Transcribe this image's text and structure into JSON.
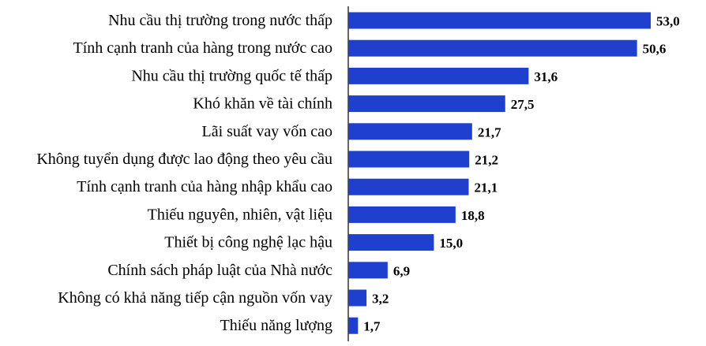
{
  "chart_data": {
    "type": "bar",
    "orientation": "horizontal",
    "title": "",
    "xlabel": "",
    "ylabel": "",
    "categories": [
      "Nhu cầu thị trường trong nước thấp",
      "Tính cạnh tranh của hàng trong nước cao",
      "Nhu cầu thị trường quốc tế thấp",
      "Khó khăn về tài chính",
      "Lãi suất vay vốn cao",
      "Không tuyển dụng được lao động theo yêu cầu",
      "Tính cạnh tranh của hàng nhập khẩu cao",
      "Thiếu nguyên, nhiên, vật liệu",
      "Thiết bị công nghệ lạc hậu",
      "Chính sách pháp luật của Nhà nước",
      "Không có khả năng tiếp cận nguồn vốn vay",
      "Thiếu năng lượng"
    ],
    "values": [
      53.0,
      50.6,
      31.6,
      27.5,
      21.7,
      21.2,
      21.1,
      18.8,
      15.0,
      6.9,
      3.2,
      1.7
    ],
    "value_labels": [
      "53,0",
      "50,6",
      "31,6",
      "27,5",
      "21,7",
      "21,2",
      "21,1",
      "18,8",
      "15,0",
      "6,9",
      "3,2",
      "1,7"
    ],
    "xlim": [
      0,
      53.0
    ],
    "bar_color": "#1f3fcf",
    "axis_color": "#000000",
    "grid": false,
    "legend": "none"
  }
}
